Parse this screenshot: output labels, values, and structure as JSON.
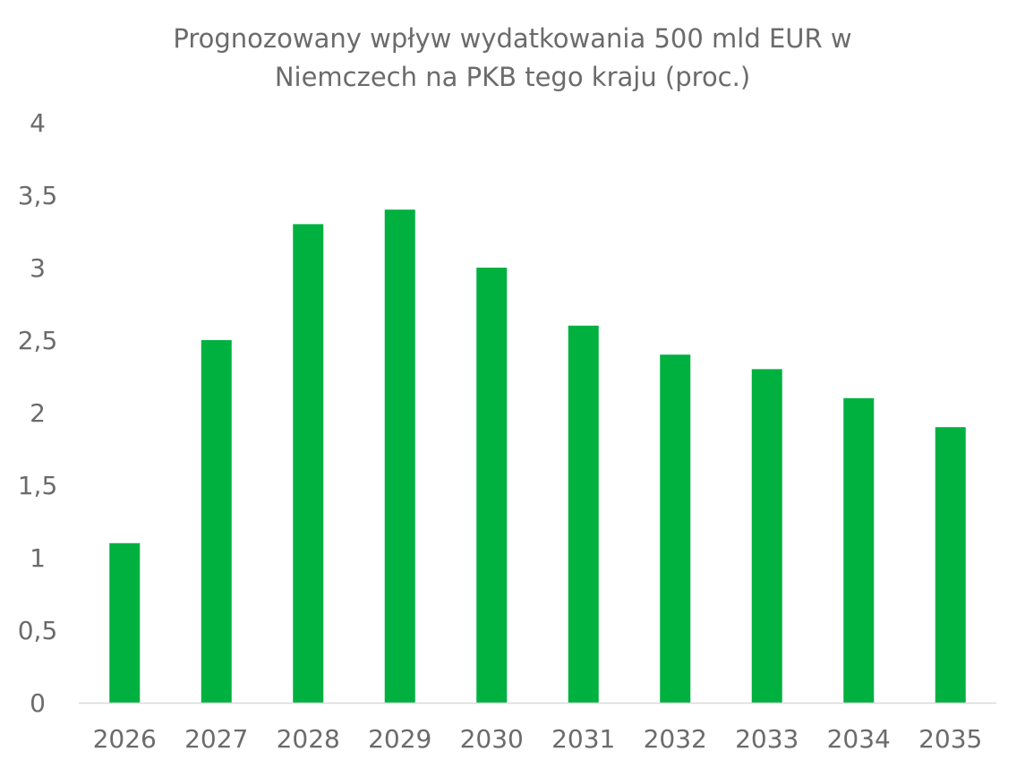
{
  "chart_data": {
    "type": "bar",
    "title_lines": [
      "Prognozowany wpływ wydatkowania 500 mld EUR w",
      "Niemczech na PKB tego kraju (proc.)"
    ],
    "categories": [
      "2026",
      "2027",
      "2028",
      "2029",
      "2030",
      "2031",
      "2032",
      "2033",
      "2034",
      "2035"
    ],
    "series": [
      {
        "values": [
          1.1,
          2.5,
          3.3,
          3.4,
          3.0,
          2.6,
          2.4,
          2.3,
          2.1,
          1.9
        ],
        "color": "#00b140"
      }
    ],
    "ylim": [
      0,
      4
    ],
    "y_ticks": [
      0,
      0.5,
      1,
      1.5,
      2,
      2.5,
      3,
      3.5,
      4
    ],
    "y_tick_labels": [
      "0",
      "0,5",
      "1",
      "1,5",
      "2",
      "2,5",
      "3",
      "3,5",
      "4"
    ],
    "grid": false,
    "legend": "none",
    "text_color": "#6b6b6b",
    "axis_color": "#d9d9d9"
  }
}
